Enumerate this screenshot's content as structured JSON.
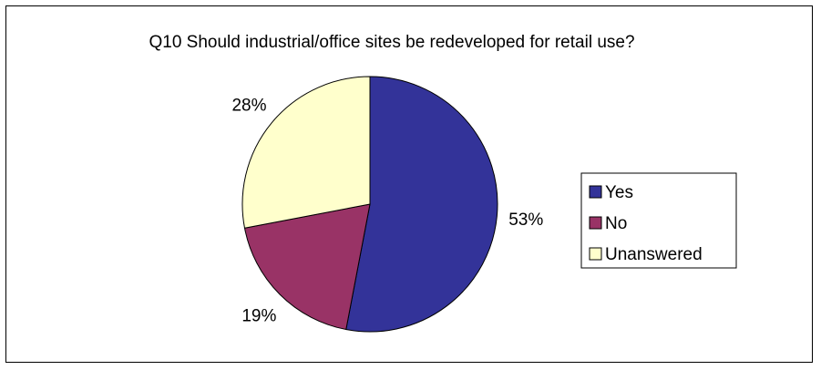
{
  "chart_data": {
    "type": "pie",
    "title": "Q10 Should industrial/office sites be redeveloped for retail use?",
    "categories": [
      "Yes",
      "No",
      "Unanswered"
    ],
    "values": [
      53,
      19,
      28
    ],
    "labels": [
      "53%",
      "19%",
      "28%"
    ],
    "colors": [
      "#333399",
      "#993366",
      "#ffffcc"
    ],
    "legend_position": "right"
  }
}
